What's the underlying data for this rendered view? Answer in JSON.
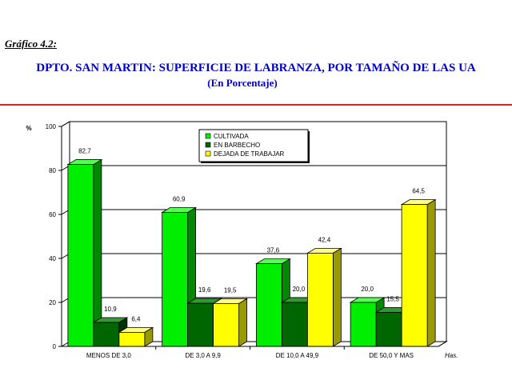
{
  "header": {
    "figure_label": "Gráfico 4.2:",
    "title": "DPTO. SAN MARTIN: SUPERFICIE DE LABRANZA, POR TAMAÑO DE LAS UA",
    "subtitle": "(En Porcentaje)"
  },
  "colors": {
    "accent_rule": "#dd2222",
    "title": "#0000cc"
  },
  "chart_data": {
    "type": "bar",
    "title": "DPTO. SAN MARTIN: SUPERFICIE DE LABRANZA, POR TAMAÑO DE LAS UA",
    "subtitle": "(En Porcentaje)",
    "xlabel": "Has.",
    "ylabel": "%",
    "ylim": [
      0,
      100
    ],
    "yticks": [
      0,
      20,
      40,
      60,
      80,
      100
    ],
    "grid": true,
    "legend_position": "top-center",
    "categories": [
      "MENOS DE 3,0",
      "DE 3,0 A 9,9",
      "DE 10,0 A 49,9",
      "DE 50,0 Y MAS"
    ],
    "series": [
      {
        "name": "CULTIVADA",
        "values": [
          82.7,
          60.9,
          37.6,
          20.0
        ],
        "labels": [
          "82,7",
          "60,9",
          "37,6",
          "20,0"
        ],
        "color": "#00ee00",
        "side": "#008800",
        "top": "#55ff55"
      },
      {
        "name": "EN BARBECHO",
        "values": [
          10.9,
          19.6,
          20.0,
          15.5
        ],
        "labels": [
          "10,9",
          "19,6",
          "20,0",
          "15,5"
        ],
        "color": "#006600",
        "side": "#003300",
        "top": "#339933"
      },
      {
        "name": "DEJADA DE TRABAJAR",
        "values": [
          6.4,
          19.5,
          42.4,
          64.5
        ],
        "labels": [
          "6,4",
          "19,5",
          "42,4",
          "64,5"
        ],
        "color": "#ffff00",
        "side": "#999900",
        "top": "#ffff88"
      }
    ]
  }
}
